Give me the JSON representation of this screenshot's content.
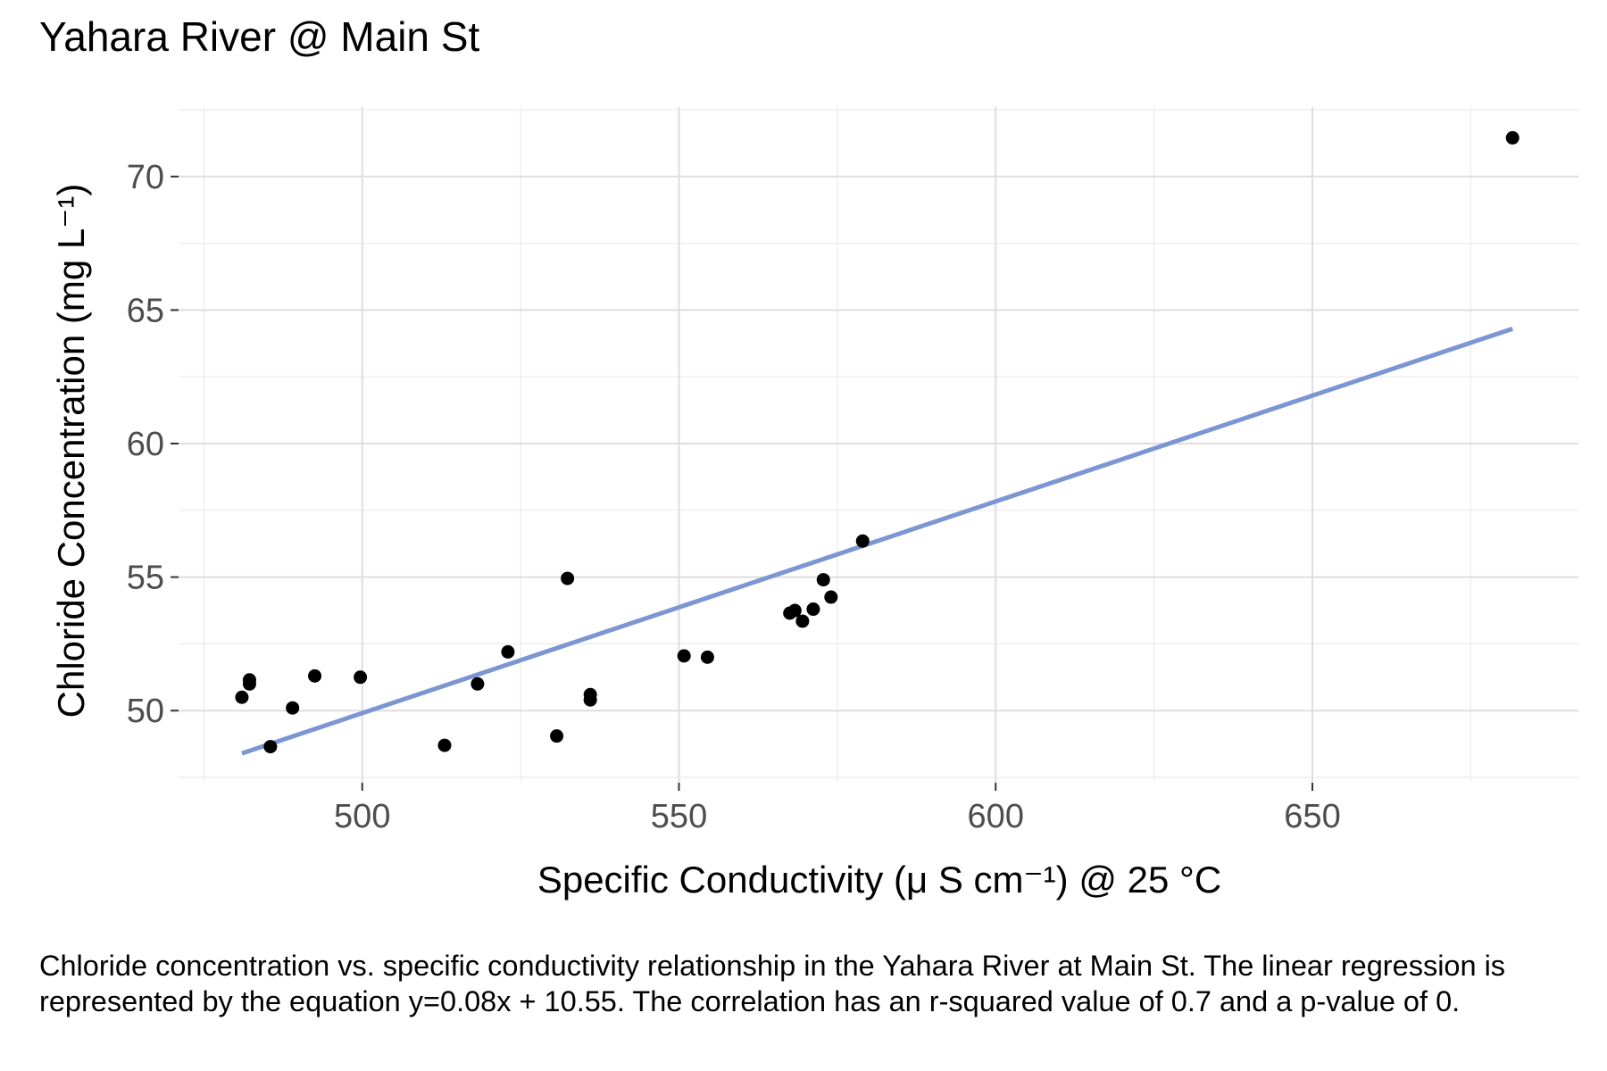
{
  "chart_data": {
    "type": "scatter",
    "title": "Yahara River @ Main St",
    "xlabel": "Specific Conductivity (μ S cm⁻¹) @ 25 °C",
    "ylabel": "Chloride Concentration (mg L⁻¹)",
    "xlim": [
      471,
      692
    ],
    "ylim": [
      47.3,
      72.6
    ],
    "x_ticks": [
      500,
      550,
      600,
      650
    ],
    "y_ticks": [
      50,
      55,
      60,
      65,
      70
    ],
    "grid": true,
    "legend": "none",
    "series": [
      {
        "points": [
          {
            "x": 481,
            "y": 50.5
          },
          {
            "x": 482.2,
            "y": 51.0
          },
          {
            "x": 482.2,
            "y": 51.15
          },
          {
            "x": 485.5,
            "y": 48.65
          },
          {
            "x": 489,
            "y": 50.1
          },
          {
            "x": 492.5,
            "y": 51.3
          },
          {
            "x": 499.7,
            "y": 51.25
          },
          {
            "x": 513,
            "y": 48.7
          },
          {
            "x": 518.2,
            "y": 51.0
          },
          {
            "x": 523,
            "y": 52.2
          },
          {
            "x": 530.7,
            "y": 49.05
          },
          {
            "x": 532.4,
            "y": 54.95
          },
          {
            "x": 536,
            "y": 50.6
          },
          {
            "x": 536,
            "y": 50.4
          },
          {
            "x": 550.8,
            "y": 52.05
          },
          {
            "x": 554.5,
            "y": 52.0
          },
          {
            "x": 567.5,
            "y": 53.65
          },
          {
            "x": 568.3,
            "y": 53.75
          },
          {
            "x": 569.5,
            "y": 53.35
          },
          {
            "x": 571.2,
            "y": 53.8
          },
          {
            "x": 572.8,
            "y": 54.9
          },
          {
            "x": 574,
            "y": 54.25
          },
          {
            "x": 579,
            "y": 56.35
          },
          {
            "x": 681.6,
            "y": 71.45
          }
        ]
      }
    ],
    "regression_line": {
      "x": [
        481,
        681.6
      ],
      "y": [
        48.4,
        64.3
      ],
      "color": "#7b96d3"
    },
    "colors": {
      "points": "#000000",
      "fit_line": "#7b96d3",
      "grid": "#dedede"
    }
  },
  "caption": "Chloride concentration vs. specific conductivity relationship in the Yahara River at Main St. The linear regression is represented by the equation y=0.08x + 10.55. The correlation has an r-squared value of 0.7 and a p-value of 0."
}
